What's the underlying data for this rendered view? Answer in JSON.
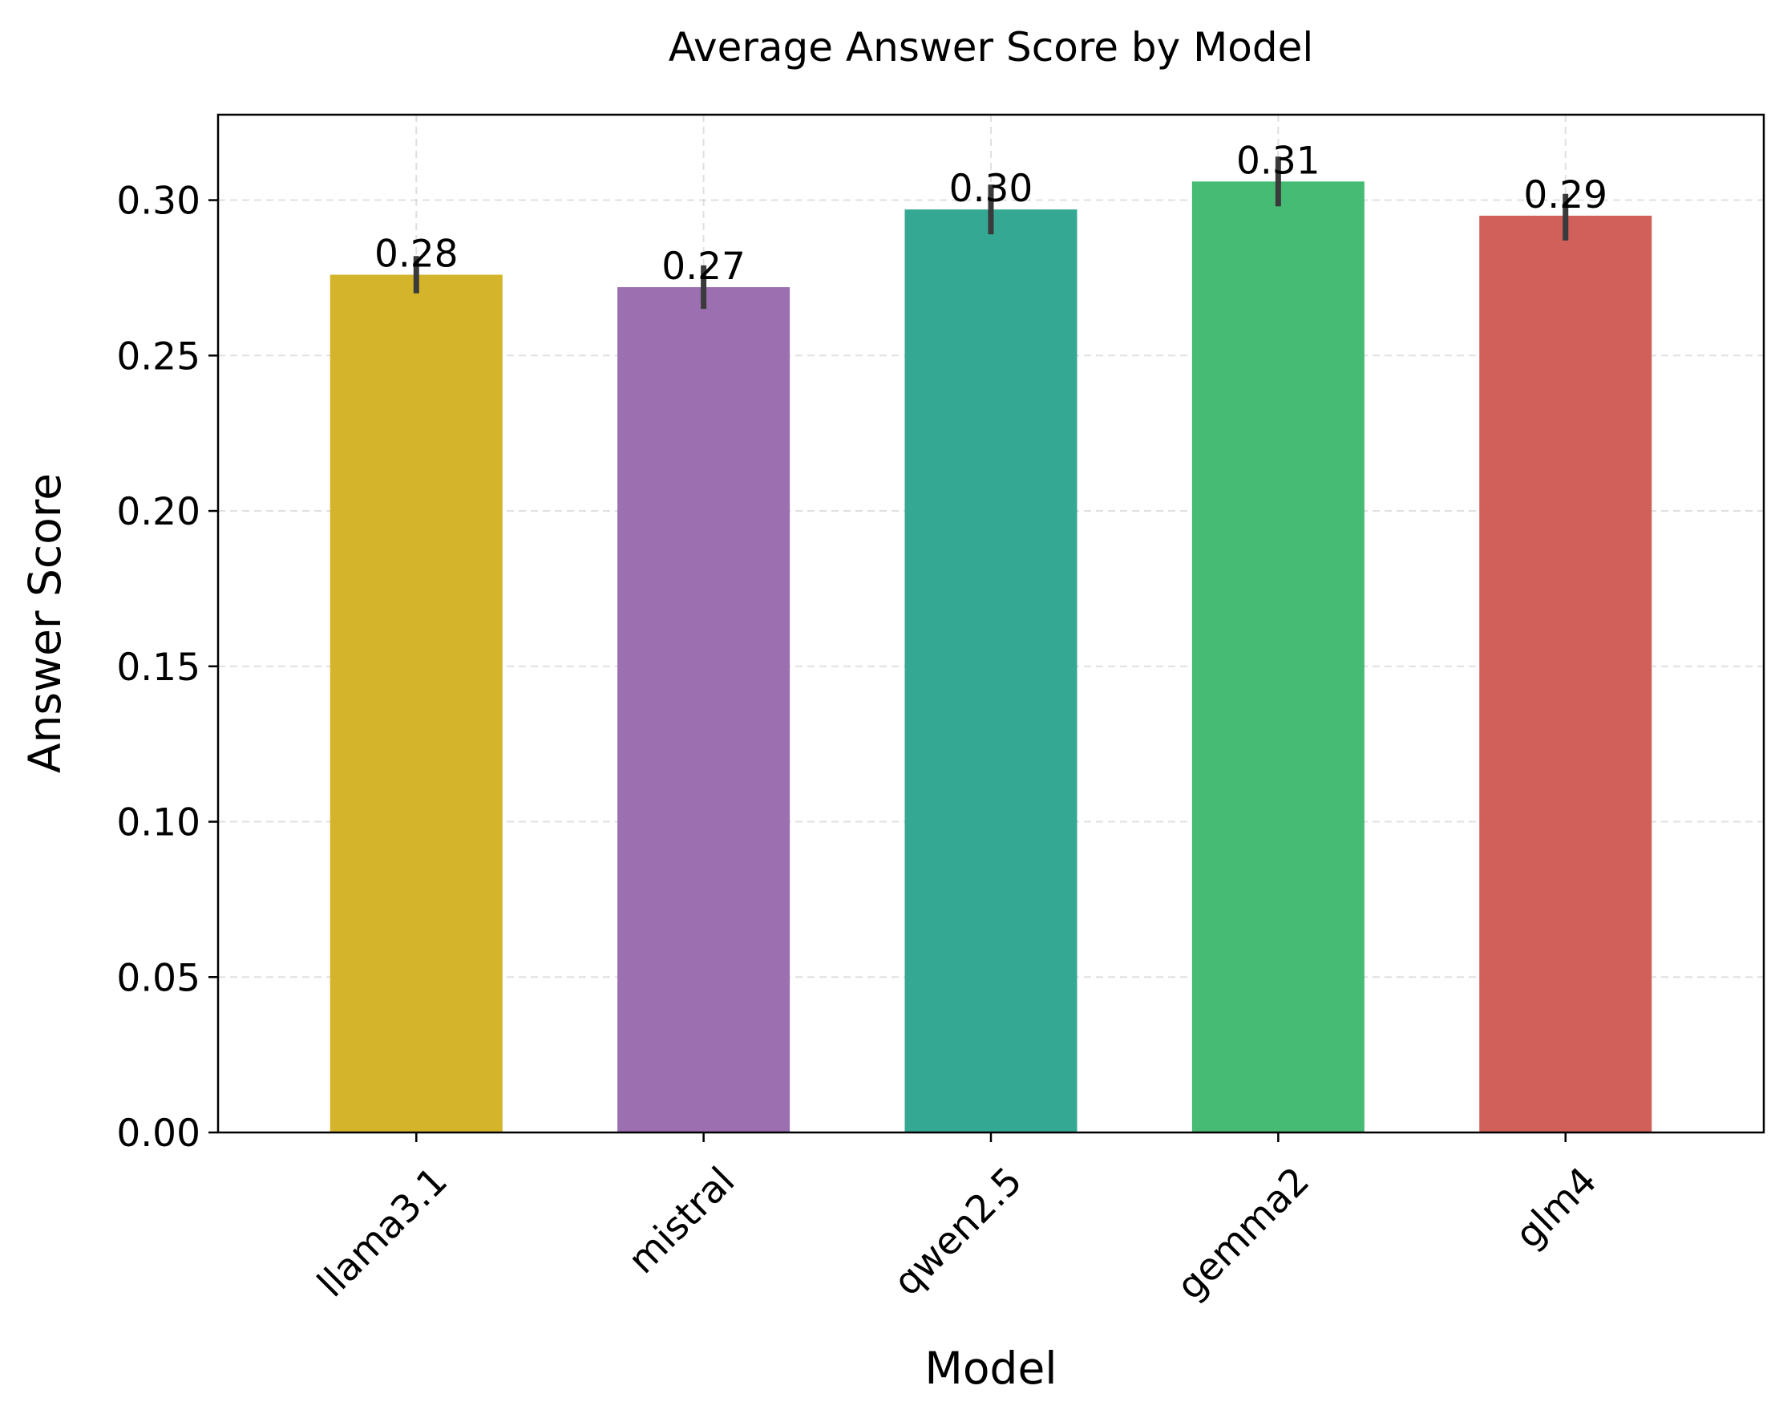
{
  "chart_data": {
    "type": "bar",
    "title": "Average Answer Score by Model",
    "xlabel": "Model",
    "ylabel": "Answer Score",
    "categories": [
      "llama3.1",
      "mistral",
      "qwen2.5",
      "gemma2",
      "glm4"
    ],
    "values": [
      0.276,
      0.272,
      0.297,
      0.306,
      0.295
    ],
    "value_labels": [
      "0.28",
      "0.27",
      "0.30",
      "0.31",
      "0.29"
    ],
    "error_low": [
      0.27,
      0.265,
      0.289,
      0.298,
      0.287
    ],
    "error_high": [
      0.282,
      0.279,
      0.305,
      0.314,
      0.302
    ],
    "colors": [
      "#d4b42a",
      "#9b6fb0",
      "#34a893",
      "#46bb74",
      "#d1605a"
    ],
    "ylim": [
      0,
      0.3275
    ],
    "yticks": [
      0.0,
      0.05,
      0.1,
      0.15,
      0.2,
      0.25,
      0.3
    ],
    "ytick_labels": [
      "0.00",
      "0.05",
      "0.10",
      "0.15",
      "0.20",
      "0.25",
      "0.30"
    ],
    "grid": true,
    "legend": "none"
  }
}
